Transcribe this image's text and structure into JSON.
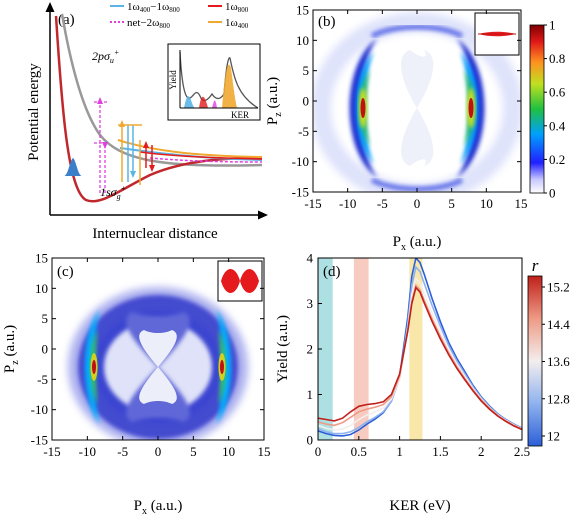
{
  "chart_data": [
    {
      "panel": "a",
      "type": "line",
      "panel_label": "(a)",
      "xlabel": "Internuclear distance",
      "ylabel": "Potential energy",
      "curves": [
        {
          "name": "2pσu+",
          "label_main": "2pσ",
          "label_sub": "u",
          "label_sup": "+",
          "color": "#999999"
        },
        {
          "name": "1sσg+",
          "label_main": "1sσ",
          "label_sub": "g",
          "label_sup": "+",
          "color": "#c0282d"
        }
      ],
      "legend": [
        {
          "label": "1ω400−1ω800",
          "parts": [
            "1ω",
            "400",
            "−1ω",
            "800"
          ],
          "color": "#5ab4e6",
          "style": "solid"
        },
        {
          "label": "1ω800",
          "parts": [
            "1ω",
            "800"
          ],
          "color": "#e41a1c",
          "style": "solid"
        },
        {
          "label": "net−2ω800",
          "parts": [
            "net−2ω",
            "800"
          ],
          "color": "#e23fe2",
          "style": "dotted"
        },
        {
          "label": "1ω400",
          "parts": [
            "1ω",
            "400"
          ],
          "color": "#f0a830",
          "style": "solid"
        }
      ],
      "inset": {
        "ylabel": "Yield",
        "xlabel": "KER"
      }
    },
    {
      "panel": "b",
      "type": "heatmap",
      "panel_label": "(b)",
      "xlabel": "Px (a.u.)",
      "xlabel_main": "P",
      "xlabel_sub": "x",
      "xlabel_unit": " (a.u.)",
      "ylabel": "Pz (a.u.)",
      "ylabel_main": "P",
      "ylabel_sub": "z",
      "ylabel_unit": " (a.u.)",
      "xlim": [
        -15,
        15
      ],
      "ylim": [
        -15,
        15
      ],
      "xticks": [
        -15,
        -10,
        -5,
        0,
        5,
        10,
        15
      ],
      "yticks": [
        -15,
        -10,
        -5,
        0,
        5,
        10,
        15
      ],
      "colorbar": {
        "range": [
          0,
          1
        ],
        "ticks": [
          "0",
          "0.2",
          "0.4",
          "0.6",
          "0.8",
          "1"
        ]
      }
    },
    {
      "panel": "c",
      "type": "heatmap",
      "panel_label": "(c)",
      "xlabel": "Px (a.u.)",
      "xlabel_main": "P",
      "xlabel_sub": "x",
      "xlabel_unit": " (a.u.)",
      "ylabel": "Pz (a.u.)",
      "ylabel_main": "P",
      "ylabel_sub": "z",
      "ylabel_unit": " (a.u.)",
      "xlim": [
        -15,
        15
      ],
      "ylim": [
        -15,
        15
      ],
      "xticks": [
        -15,
        -10,
        -5,
        0,
        5,
        10,
        15
      ],
      "yticks": [
        -15,
        -10,
        -5,
        0,
        5,
        10,
        15
      ]
    },
    {
      "panel": "d",
      "type": "line",
      "panel_label": "(d)",
      "xlabel": "KER (eV)",
      "ylabel": "Yield (a.u.)",
      "xlim": [
        0,
        2.5
      ],
      "ylim": [
        0,
        4
      ],
      "xticks": [
        "0",
        "0.5",
        "1",
        "1.5",
        "2",
        "2.5"
      ],
      "yticks": [
        "0",
        "1",
        "2",
        "3",
        "4"
      ],
      "shaded_bands": [
        {
          "range": [
            0.0,
            0.18
          ],
          "color": "#9fdadd"
        },
        {
          "range": [
            0.44,
            0.62
          ],
          "color": "#f6c2b4"
        },
        {
          "range": [
            1.12,
            1.28
          ],
          "color": "#f7e39a"
        }
      ],
      "colorbar": {
        "label": "r",
        "range": [
          12,
          15.2
        ],
        "ticks": [
          "15.2",
          "14.4",
          "13.6",
          "12.8",
          "12"
        ]
      },
      "series": [
        {
          "r": 12.0,
          "values": [
            [
              0,
              0.2
            ],
            [
              0.1,
              0.14
            ],
            [
              0.2,
              0.1
            ],
            [
              0.3,
              0.09
            ],
            [
              0.4,
              0.12
            ],
            [
              0.5,
              0.22
            ],
            [
              0.6,
              0.35
            ],
            [
              0.7,
              0.46
            ],
            [
              0.8,
              0.6
            ],
            [
              0.9,
              0.85
            ],
            [
              1.0,
              1.4
            ],
            [
              1.1,
              2.7
            ],
            [
              1.15,
              3.6
            ],
            [
              1.2,
              4.0
            ],
            [
              1.25,
              3.9
            ],
            [
              1.3,
              3.65
            ],
            [
              1.4,
              3.1
            ],
            [
              1.5,
              2.6
            ],
            [
              1.6,
              2.15
            ],
            [
              1.7,
              1.8
            ],
            [
              1.8,
              1.5
            ],
            [
              1.9,
              1.2
            ],
            [
              2.0,
              0.95
            ],
            [
              2.1,
              0.75
            ],
            [
              2.2,
              0.58
            ],
            [
              2.3,
              0.45
            ],
            [
              2.4,
              0.35
            ],
            [
              2.5,
              0.26
            ]
          ]
        },
        {
          "r": 12.8,
          "values": [
            [
              0,
              0.25
            ],
            [
              0.1,
              0.18
            ],
            [
              0.2,
              0.14
            ],
            [
              0.3,
              0.14
            ],
            [
              0.4,
              0.18
            ],
            [
              0.5,
              0.28
            ],
            [
              0.6,
              0.4
            ],
            [
              0.7,
              0.5
            ],
            [
              0.8,
              0.62
            ],
            [
              0.9,
              0.85
            ],
            [
              1.0,
              1.35
            ],
            [
              1.1,
              2.55
            ],
            [
              1.15,
              3.4
            ],
            [
              1.2,
              3.8
            ],
            [
              1.25,
              3.7
            ],
            [
              1.3,
              3.45
            ],
            [
              1.4,
              2.95
            ],
            [
              1.5,
              2.5
            ],
            [
              1.6,
              2.08
            ],
            [
              1.7,
              1.74
            ],
            [
              1.8,
              1.45
            ],
            [
              1.9,
              1.17
            ],
            [
              2.0,
              0.93
            ],
            [
              2.1,
              0.73
            ],
            [
              2.2,
              0.57
            ],
            [
              2.3,
              0.44
            ],
            [
              2.4,
              0.34
            ],
            [
              2.5,
              0.25
            ]
          ]
        },
        {
          "r": 13.6,
          "values": [
            [
              0,
              0.32
            ],
            [
              0.1,
              0.26
            ],
            [
              0.2,
              0.22
            ],
            [
              0.3,
              0.24
            ],
            [
              0.4,
              0.32
            ],
            [
              0.5,
              0.45
            ],
            [
              0.6,
              0.55
            ],
            [
              0.7,
              0.62
            ],
            [
              0.8,
              0.7
            ],
            [
              0.9,
              0.9
            ],
            [
              1.0,
              1.35
            ],
            [
              1.1,
              2.45
            ],
            [
              1.15,
              3.2
            ],
            [
              1.2,
              3.55
            ],
            [
              1.25,
              3.45
            ],
            [
              1.3,
              3.22
            ],
            [
              1.4,
              2.78
            ],
            [
              1.5,
              2.38
            ],
            [
              1.6,
              2.0
            ],
            [
              1.7,
              1.68
            ],
            [
              1.8,
              1.4
            ],
            [
              1.9,
              1.13
            ],
            [
              2.0,
              0.9
            ],
            [
              2.1,
              0.71
            ],
            [
              2.2,
              0.55
            ],
            [
              2.3,
              0.43
            ],
            [
              2.4,
              0.33
            ],
            [
              2.5,
              0.25
            ]
          ]
        },
        {
          "r": 14.4,
          "values": [
            [
              0,
              0.4
            ],
            [
              0.1,
              0.35
            ],
            [
              0.2,
              0.32
            ],
            [
              0.3,
              0.38
            ],
            [
              0.4,
              0.5
            ],
            [
              0.5,
              0.62
            ],
            [
              0.6,
              0.68
            ],
            [
              0.7,
              0.72
            ],
            [
              0.8,
              0.78
            ],
            [
              0.9,
              0.95
            ],
            [
              1.0,
              1.4
            ],
            [
              1.1,
              2.4
            ],
            [
              1.15,
              3.05
            ],
            [
              1.2,
              3.4
            ],
            [
              1.25,
              3.3
            ],
            [
              1.3,
              3.08
            ],
            [
              1.4,
              2.66
            ],
            [
              1.5,
              2.28
            ],
            [
              1.6,
              1.92
            ],
            [
              1.7,
              1.62
            ],
            [
              1.8,
              1.35
            ],
            [
              1.9,
              1.1
            ],
            [
              2.0,
              0.88
            ],
            [
              2.1,
              0.7
            ],
            [
              2.2,
              0.54
            ],
            [
              2.3,
              0.42
            ],
            [
              2.4,
              0.32
            ],
            [
              2.5,
              0.24
            ]
          ]
        },
        {
          "r": 15.2,
          "values": [
            [
              0,
              0.48
            ],
            [
              0.1,
              0.45
            ],
            [
              0.2,
              0.42
            ],
            [
              0.3,
              0.48
            ],
            [
              0.4,
              0.62
            ],
            [
              0.5,
              0.74
            ],
            [
              0.6,
              0.78
            ],
            [
              0.7,
              0.8
            ],
            [
              0.8,
              0.84
            ],
            [
              0.9,
              1.0
            ],
            [
              1.0,
              1.45
            ],
            [
              1.1,
              2.4
            ],
            [
              1.15,
              3.0
            ],
            [
              1.2,
              3.35
            ],
            [
              1.25,
              3.25
            ],
            [
              1.3,
              3.02
            ],
            [
              1.4,
              2.6
            ],
            [
              1.5,
              2.22
            ],
            [
              1.6,
              1.88
            ],
            [
              1.7,
              1.58
            ],
            [
              1.8,
              1.32
            ],
            [
              1.9,
              1.08
            ],
            [
              2.0,
              0.86
            ],
            [
              2.1,
              0.68
            ],
            [
              2.2,
              0.53
            ],
            [
              2.3,
              0.41
            ],
            [
              2.4,
              0.31
            ],
            [
              2.5,
              0.23
            ]
          ]
        }
      ]
    }
  ]
}
